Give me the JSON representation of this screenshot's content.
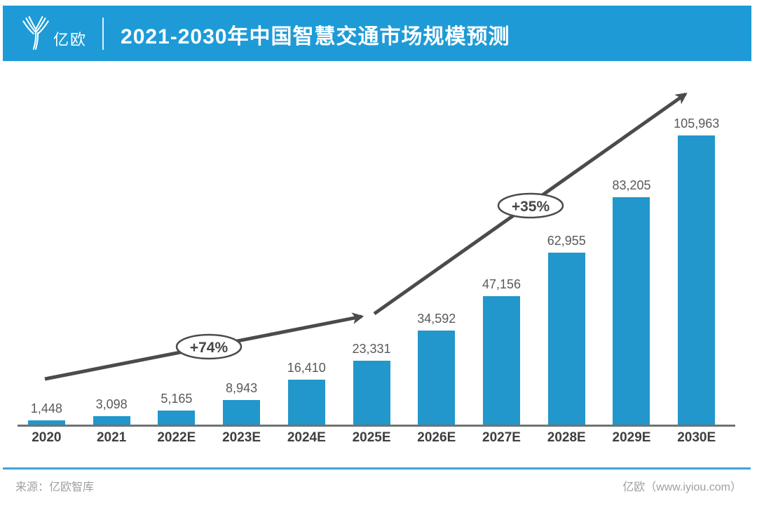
{
  "header": {
    "brand": "亿欧",
    "title": "2021-2030年中国智慧交通市场规模预测"
  },
  "chart_data": {
    "type": "bar",
    "title": "2021-2030年中国智慧交通市场规模预测",
    "categories": [
      "2020",
      "2021",
      "2022E",
      "2023E",
      "2024E",
      "2025E",
      "2026E",
      "2027E",
      "2028E",
      "2029E",
      "2030E"
    ],
    "values": [
      1448,
      3098,
      5165,
      8943,
      16410,
      23331,
      34592,
      47156,
      62955,
      83205,
      105963
    ],
    "value_labels": [
      "1,448",
      "3,098",
      "5,165",
      "8,943",
      "16,410",
      "23,331",
      "34,592",
      "47,156",
      "62,955",
      "83,205",
      "105,963"
    ],
    "xlabel": "",
    "ylabel": "",
    "ylim": [
      0,
      110000
    ],
    "grid": false,
    "legend": false,
    "bar_color": "#2197CB",
    "annotations": [
      {
        "label": "+74%",
        "span": [
          "2020",
          "2025E"
        ],
        "type": "growth-ellipse-on-arrow"
      },
      {
        "label": "+35%",
        "span": [
          "2025E",
          "2030E"
        ],
        "type": "growth-ellipse-on-arrow"
      }
    ]
  },
  "footer": {
    "source": "来源：亿欧智库",
    "brand": "亿欧（www.iyiou.com）"
  },
  "colors": {
    "header_bg": "#1E9BD7",
    "bar": "#2197CB",
    "arrow": "#4A4B4D",
    "axis": "#717274",
    "value_label": "#58595B",
    "footer_divider": "#41A5D5",
    "footer_text": "#9EA0A3"
  }
}
